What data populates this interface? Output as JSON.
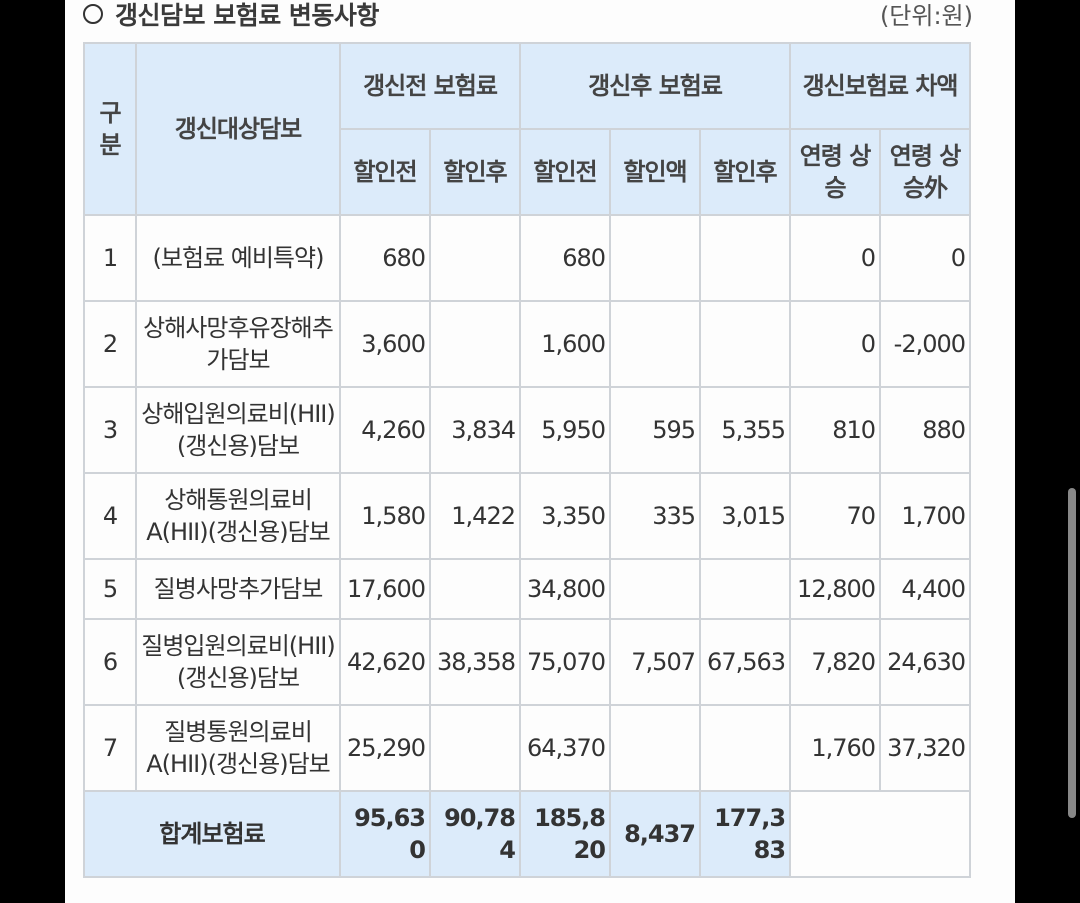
{
  "title": "갱신담보 보험료 변동사항",
  "unit": "(단위:원)",
  "headers": {
    "category": "구분",
    "coverage": "갱신대상담보",
    "before_group": "갱신전 보험료",
    "after_group": "갱신후 보험료",
    "diff_group": "갱신보험료 차액",
    "before_pre": "할인전",
    "before_post": "할인후",
    "after_pre": "할인전",
    "after_amount": "할인액",
    "after_post": "할인후",
    "age_up": "연령 상승",
    "age_other": "연령 상승外"
  },
  "rows": [
    {
      "no": "1",
      "name": "(보험료 예비특약)",
      "bp": "680",
      "bd": "",
      "ap": "680",
      "aa": "",
      "ad": "",
      "age": "0",
      "other": "0"
    },
    {
      "no": "2",
      "name": "상해사망후유장해추가담보",
      "bp": "3,600",
      "bd": "",
      "ap": "1,600",
      "aa": "",
      "ad": "",
      "age": "0",
      "other": "-2,000"
    },
    {
      "no": "3",
      "name": "상해입원의료비(HII)(갱신용)담보",
      "bp": "4,260",
      "bd": "3,834",
      "ap": "5,950",
      "aa": "595",
      "ad": "5,355",
      "age": "810",
      "other": "880"
    },
    {
      "no": "4",
      "name": "상해통원의료비A(HII)(갱신용)담보",
      "bp": "1,580",
      "bd": "1,422",
      "ap": "3,350",
      "aa": "335",
      "ad": "3,015",
      "age": "70",
      "other": "1,700"
    },
    {
      "no": "5",
      "name": "질병사망추가담보",
      "bp": "17,600",
      "bd": "",
      "ap": "34,800",
      "aa": "",
      "ad": "",
      "age": "12,800",
      "other": "4,400"
    },
    {
      "no": "6",
      "name": "질병입원의료비(HII)(갱신용)담보",
      "bp": "42,620",
      "bd": "38,358",
      "ap": "75,070",
      "aa": "7,507",
      "ad": "67,563",
      "age": "7,820",
      "other": "24,630"
    },
    {
      "no": "7",
      "name": "질병통원의료비A(HII)(갱신용)담보",
      "bp": "25,290",
      "bd": "",
      "ap": "64,370",
      "aa": "",
      "ad": "",
      "age": "1,760",
      "other": "37,320"
    }
  ],
  "total": {
    "label": "합계보험료",
    "bp": "95,630",
    "bd": "90,784",
    "ap": "185,820",
    "aa": "8,437",
    "ad": "177,383"
  }
}
